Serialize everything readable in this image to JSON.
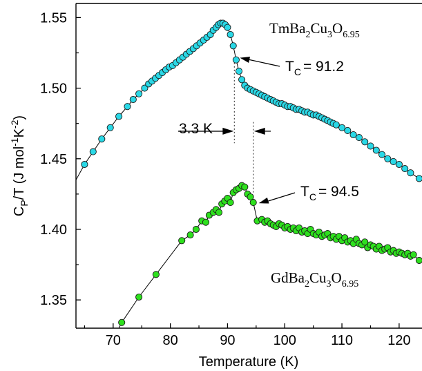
{
  "chart_data": {
    "type": "scatter",
    "xlabel": "Temperature (K)",
    "ylabel": {
      "main": "C",
      "sub": "P",
      "rest": "/T (J mol",
      "sup1": "-1",
      "mid": "K",
      "sup2": "-2",
      "end": ")"
    },
    "xlim": [
      63.5,
      124
    ],
    "ylim": [
      1.33,
      1.56
    ],
    "x_ticks": [
      70,
      80,
      90,
      100,
      110,
      120
    ],
    "x_tick_labels": [
      "70",
      "80",
      "90",
      "100",
      "110",
      "120"
    ],
    "y_ticks": [
      1.35,
      1.4,
      1.45,
      1.5,
      1.55
    ],
    "y_tick_labels": [
      "1.35",
      "1.40",
      "1.45",
      "1.50",
      "1.55"
    ],
    "series": [
      {
        "name": "TmBa2Cu3O6.95",
        "label_parts": [
          "TmBa",
          "2",
          "Cu",
          "3",
          "O",
          "6.95"
        ],
        "color": "#2ad8e6",
        "x": [
          65,
          66.5,
          68,
          69.5,
          71,
          72.5,
          73.5,
          74.5,
          75.5,
          76.2,
          76.8,
          77.4,
          78,
          78.6,
          79.2,
          79.8,
          80.4,
          81,
          81.6,
          82.2,
          82.8,
          83.4,
          84,
          84.6,
          85.2,
          85.8,
          86.4,
          87,
          87.5,
          88,
          88.4,
          88.8,
          89.2,
          89.6,
          90,
          90.5,
          91,
          91.5,
          92,
          92.5,
          93,
          93.5,
          94,
          94.5,
          95,
          95.5,
          96,
          96.5,
          97,
          97.5,
          98,
          98.5,
          99,
          99.5,
          100,
          100.5,
          101,
          101.5,
          102,
          102.5,
          103,
          103.5,
          104,
          104.5,
          105,
          105.5,
          106,
          106.5,
          107,
          107.5,
          108,
          108.5,
          109,
          110,
          111,
          112,
          113,
          114,
          115,
          116,
          117,
          118,
          119,
          120,
          121,
          122,
          123.5
        ],
        "y": [
          1.446,
          1.455,
          1.464,
          1.472,
          1.48,
          1.487,
          1.492,
          1.496,
          1.5,
          1.503,
          1.505,
          1.507,
          1.509,
          1.511,
          1.513,
          1.515,
          1.516,
          1.518,
          1.52,
          1.522,
          1.524,
          1.526,
          1.528,
          1.53,
          1.532,
          1.534,
          1.536,
          1.538,
          1.541,
          1.543,
          1.545,
          1.546,
          1.546,
          1.545,
          1.543,
          1.538,
          1.53,
          1.52,
          1.512,
          1.506,
          1.502,
          1.5,
          1.499,
          1.498,
          1.497,
          1.496,
          1.495,
          1.494,
          1.493,
          1.492,
          1.491,
          1.49,
          1.489,
          1.489,
          1.488,
          1.487,
          1.487,
          1.486,
          1.485,
          1.485,
          1.484,
          1.483,
          1.483,
          1.482,
          1.481,
          1.481,
          1.48,
          1.479,
          1.478,
          1.477,
          1.476,
          1.475,
          1.474,
          1.472,
          1.47,
          1.467,
          1.465,
          1.462,
          1.459,
          1.456,
          1.453,
          1.45,
          1.448,
          1.446,
          1.443,
          1.44,
          1.436
        ]
      },
      {
        "name": "GdBa2Cu3O6.95",
        "label_parts": [
          "GdBa",
          "2",
          "Cu",
          "3",
          "O",
          "6.95"
        ],
        "color": "#2ee01e",
        "x": [
          71.5,
          74.5,
          77.5,
          82,
          83.5,
          84.5,
          85.5,
          86.2,
          86.8,
          87.5,
          88,
          88.5,
          89,
          89.5,
          90,
          90.5,
          91,
          91.5,
          92,
          92.5,
          93,
          93.5,
          94,
          94.5,
          95.2,
          96,
          96.5,
          97,
          97.5,
          98,
          98.5,
          99,
          99.5,
          100,
          100.5,
          101,
          101.5,
          102,
          102.5,
          103,
          103.5,
          104,
          104.5,
          105,
          105.5,
          106,
          106.5,
          107,
          107.5,
          108,
          108.5,
          109,
          109.5,
          110,
          110.5,
          111,
          111.5,
          112,
          112.5,
          113,
          113.5,
          114,
          114.5,
          115,
          115.5,
          116,
          116.5,
          117,
          117.5,
          118,
          118.5,
          119,
          119.5,
          120,
          120.5,
          121,
          121.5,
          122,
          122.5,
          123.5
        ],
        "y": [
          1.334,
          1.352,
          1.368,
          1.392,
          1.396,
          1.4,
          1.406,
          1.405,
          1.41,
          1.412,
          1.414,
          1.412,
          1.418,
          1.42,
          1.422,
          1.419,
          1.426,
          1.428,
          1.429,
          1.431,
          1.43,
          1.425,
          1.423,
          1.419,
          1.406,
          1.407,
          1.405,
          1.406,
          1.404,
          1.403,
          1.402,
          1.404,
          1.403,
          1.401,
          1.402,
          1.4,
          1.401,
          1.399,
          1.401,
          1.398,
          1.399,
          1.397,
          1.4,
          1.397,
          1.396,
          1.398,
          1.395,
          1.396,
          1.397,
          1.394,
          1.395,
          1.393,
          1.395,
          1.392,
          1.394,
          1.391,
          1.392,
          1.39,
          1.393,
          1.39,
          1.389,
          1.391,
          1.387,
          1.389,
          1.388,
          1.386,
          1.388,
          1.385,
          1.386,
          1.387,
          1.384,
          1.385,
          1.383,
          1.384,
          1.383,
          1.382,
          1.383,
          1.381,
          1.382,
          1.378
        ]
      }
    ],
    "annotations": {
      "tc1": {
        "prefix": "T",
        "sub": "C",
        "text": "= 91.2",
        "x": 91.2,
        "y": 1.522
      },
      "tc2": {
        "prefix": "T",
        "sub": "C",
        "text": "= 94.5",
        "x": 94.5,
        "y": 1.419
      },
      "delta": {
        "text": "3.3 K",
        "x1": 91.2,
        "x2": 94.5,
        "y": 1.47
      }
    },
    "grid": false,
    "legend": "none"
  }
}
